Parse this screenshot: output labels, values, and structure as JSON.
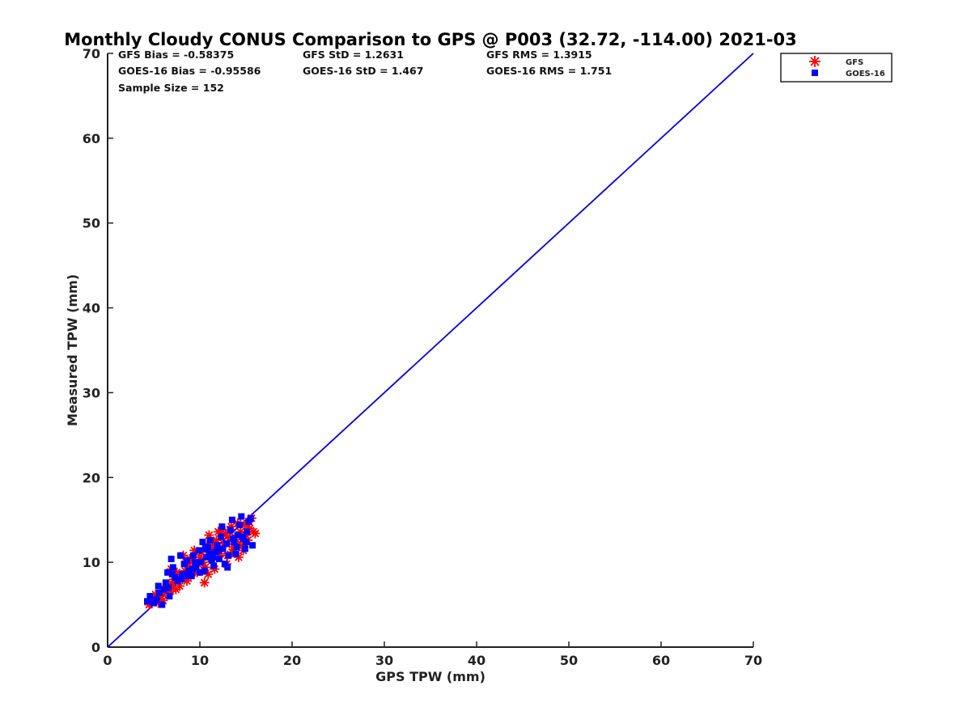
{
  "chart_data": {
    "type": "scatter",
    "title": "Monthly Cloudy CONUS Comparison to GPS @ P003 (32.72, -114.00) 2021-03",
    "xlabel": "GPS TPW (mm)",
    "ylabel": "Measured TPW (mm)",
    "xlim": [
      0,
      70
    ],
    "ylim": [
      0,
      70
    ],
    "xticks": [
      0,
      10,
      20,
      30,
      40,
      50,
      60,
      70
    ],
    "yticks": [
      0,
      10,
      20,
      30,
      40,
      50,
      60,
      70
    ],
    "grid": false,
    "legend_position": "top-right, outside plot",
    "stats": [
      [
        "GFS Bias = -0.58375",
        "GFS StD = 1.2631",
        "GFS RMS = 1.3915"
      ],
      [
        "GOES-16 Bias = -0.95586",
        "GOES-16 StD = 1.467",
        "GOES-16 RMS = 1.751"
      ],
      [
        "Sample Size = 152",
        "",
        ""
      ]
    ],
    "reference_line": {
      "x": [
        0,
        70
      ],
      "y": [
        0,
        70
      ],
      "color": "#0000dd"
    },
    "series": [
      {
        "name": "GFS",
        "marker": "asterisk",
        "color": "#ff0000",
        "points": [
          [
            4.5,
            5.0
          ],
          [
            5.0,
            5.4
          ],
          [
            5.5,
            5.2
          ],
          [
            5.8,
            6.0
          ],
          [
            6.0,
            5.5
          ],
          [
            6.2,
            6.5
          ],
          [
            6.4,
            7.0
          ],
          [
            6.6,
            7.4
          ],
          [
            6.8,
            6.6
          ],
          [
            7.0,
            7.5
          ],
          [
            7.2,
            8.0
          ],
          [
            7.5,
            8.8
          ],
          [
            7.8,
            7.2
          ],
          [
            8.0,
            8.2
          ],
          [
            8.2,
            10.8
          ],
          [
            8.4,
            9.0
          ],
          [
            8.6,
            7.8
          ],
          [
            8.8,
            9.6
          ],
          [
            9.0,
            8.4
          ],
          [
            9.2,
            10.2
          ],
          [
            9.5,
            9.0
          ],
          [
            9.8,
            9.8
          ],
          [
            10.0,
            10.6
          ],
          [
            10.2,
            11.2
          ],
          [
            10.5,
            7.6
          ],
          [
            10.6,
            9.4
          ],
          [
            10.8,
            12.0
          ],
          [
            11.0,
            13.2
          ],
          [
            11.2,
            10.4
          ],
          [
            11.4,
            11.6
          ],
          [
            11.6,
            9.2
          ],
          [
            11.8,
            12.6
          ],
          [
            12.0,
            13.6
          ],
          [
            12.2,
            11.0
          ],
          [
            12.4,
            13.8
          ],
          [
            12.6,
            12.2
          ],
          [
            12.8,
            13.4
          ],
          [
            13.0,
            10.8
          ],
          [
            13.2,
            12.8
          ],
          [
            13.4,
            14.2
          ],
          [
            13.6,
            11.8
          ],
          [
            13.8,
            13.0
          ],
          [
            14.0,
            12.4
          ],
          [
            14.2,
            10.6
          ],
          [
            14.4,
            13.6
          ],
          [
            14.6,
            12.0
          ],
          [
            14.8,
            14.4
          ],
          [
            15.0,
            13.2
          ],
          [
            15.2,
            12.6
          ],
          [
            15.4,
            14.0
          ],
          [
            15.6,
            15.2
          ],
          [
            15.8,
            13.6
          ],
          [
            16.0,
            13.4
          ],
          [
            6.9,
            9.2
          ],
          [
            7.4,
            6.8
          ],
          [
            9.4,
            11.4
          ],
          [
            10.3,
            10.0
          ],
          [
            11.5,
            12.3
          ],
          [
            12.9,
            9.8
          ],
          [
            13.5,
            11.2
          ],
          [
            14.1,
            14.6
          ],
          [
            8.9,
            10.4
          ],
          [
            5.2,
            6.2
          ],
          [
            10.9,
            8.6
          ],
          [
            12.3,
            13.1
          ],
          [
            14.7,
            11.4
          ],
          [
            15.3,
            14.8
          ],
          [
            6.3,
            6.9
          ],
          [
            9.7,
            8.8
          ],
          [
            11.1,
            11.5
          ]
        ]
      },
      {
        "name": "GOES-16",
        "marker": "square",
        "color": "#0000ff",
        "points": [
          [
            4.3,
            5.4
          ],
          [
            4.6,
            6.0
          ],
          [
            5.0,
            5.2
          ],
          [
            5.3,
            5.6
          ],
          [
            5.6,
            6.4
          ],
          [
            5.9,
            5.0
          ],
          [
            6.1,
            6.8
          ],
          [
            6.3,
            7.6
          ],
          [
            6.5,
            8.8
          ],
          [
            6.7,
            6.0
          ],
          [
            6.9,
            10.4
          ],
          [
            7.1,
            9.4
          ],
          [
            7.3,
            8.2
          ],
          [
            7.6,
            7.8
          ],
          [
            7.9,
            10.8
          ],
          [
            8.1,
            8.6
          ],
          [
            8.3,
            9.8
          ],
          [
            8.6,
            10.2
          ],
          [
            8.8,
            9.0
          ],
          [
            9.1,
            8.4
          ],
          [
            9.3,
            10.8
          ],
          [
            9.6,
            9.4
          ],
          [
            9.9,
            11.4
          ],
          [
            10.1,
            10.0
          ],
          [
            10.3,
            12.4
          ],
          [
            10.5,
            9.0
          ],
          [
            10.7,
            10.6
          ],
          [
            10.9,
            11.8
          ],
          [
            11.1,
            12.6
          ],
          [
            11.3,
            10.2
          ],
          [
            11.5,
            9.6
          ],
          [
            11.7,
            11.2
          ],
          [
            11.9,
            12.0
          ],
          [
            12.1,
            10.4
          ],
          [
            12.3,
            13.0
          ],
          [
            12.5,
            11.6
          ],
          [
            12.7,
            9.8
          ],
          [
            12.9,
            12.2
          ],
          [
            13.1,
            10.8
          ],
          [
            13.3,
            13.8
          ],
          [
            13.5,
            15.0
          ],
          [
            13.7,
            12.4
          ],
          [
            13.9,
            11.0
          ],
          [
            14.1,
            13.2
          ],
          [
            14.3,
            14.4
          ],
          [
            14.5,
            15.4
          ],
          [
            14.7,
            12.8
          ],
          [
            14.9,
            11.6
          ],
          [
            15.1,
            13.6
          ],
          [
            15.3,
            14.8
          ],
          [
            15.5,
            15.2
          ],
          [
            15.7,
            12.0
          ],
          [
            5.5,
            7.2
          ],
          [
            6.6,
            7.0
          ],
          [
            8.0,
            8.0
          ],
          [
            9.5,
            10.0
          ],
          [
            10.0,
            8.8
          ],
          [
            11.0,
            11.0
          ],
          [
            12.0,
            11.4
          ],
          [
            13.0,
            9.4
          ],
          [
            14.0,
            11.8
          ],
          [
            15.0,
            12.4
          ],
          [
            12.4,
            14.2
          ],
          [
            10.6,
            11.6
          ],
          [
            8.7,
            8.4
          ],
          [
            7.0,
            8.6
          ],
          [
            9.2,
            9.2
          ],
          [
            13.6,
            12.8
          ],
          [
            11.4,
            10.6
          ],
          [
            14.6,
            13.0
          ]
        ]
      }
    ]
  }
}
